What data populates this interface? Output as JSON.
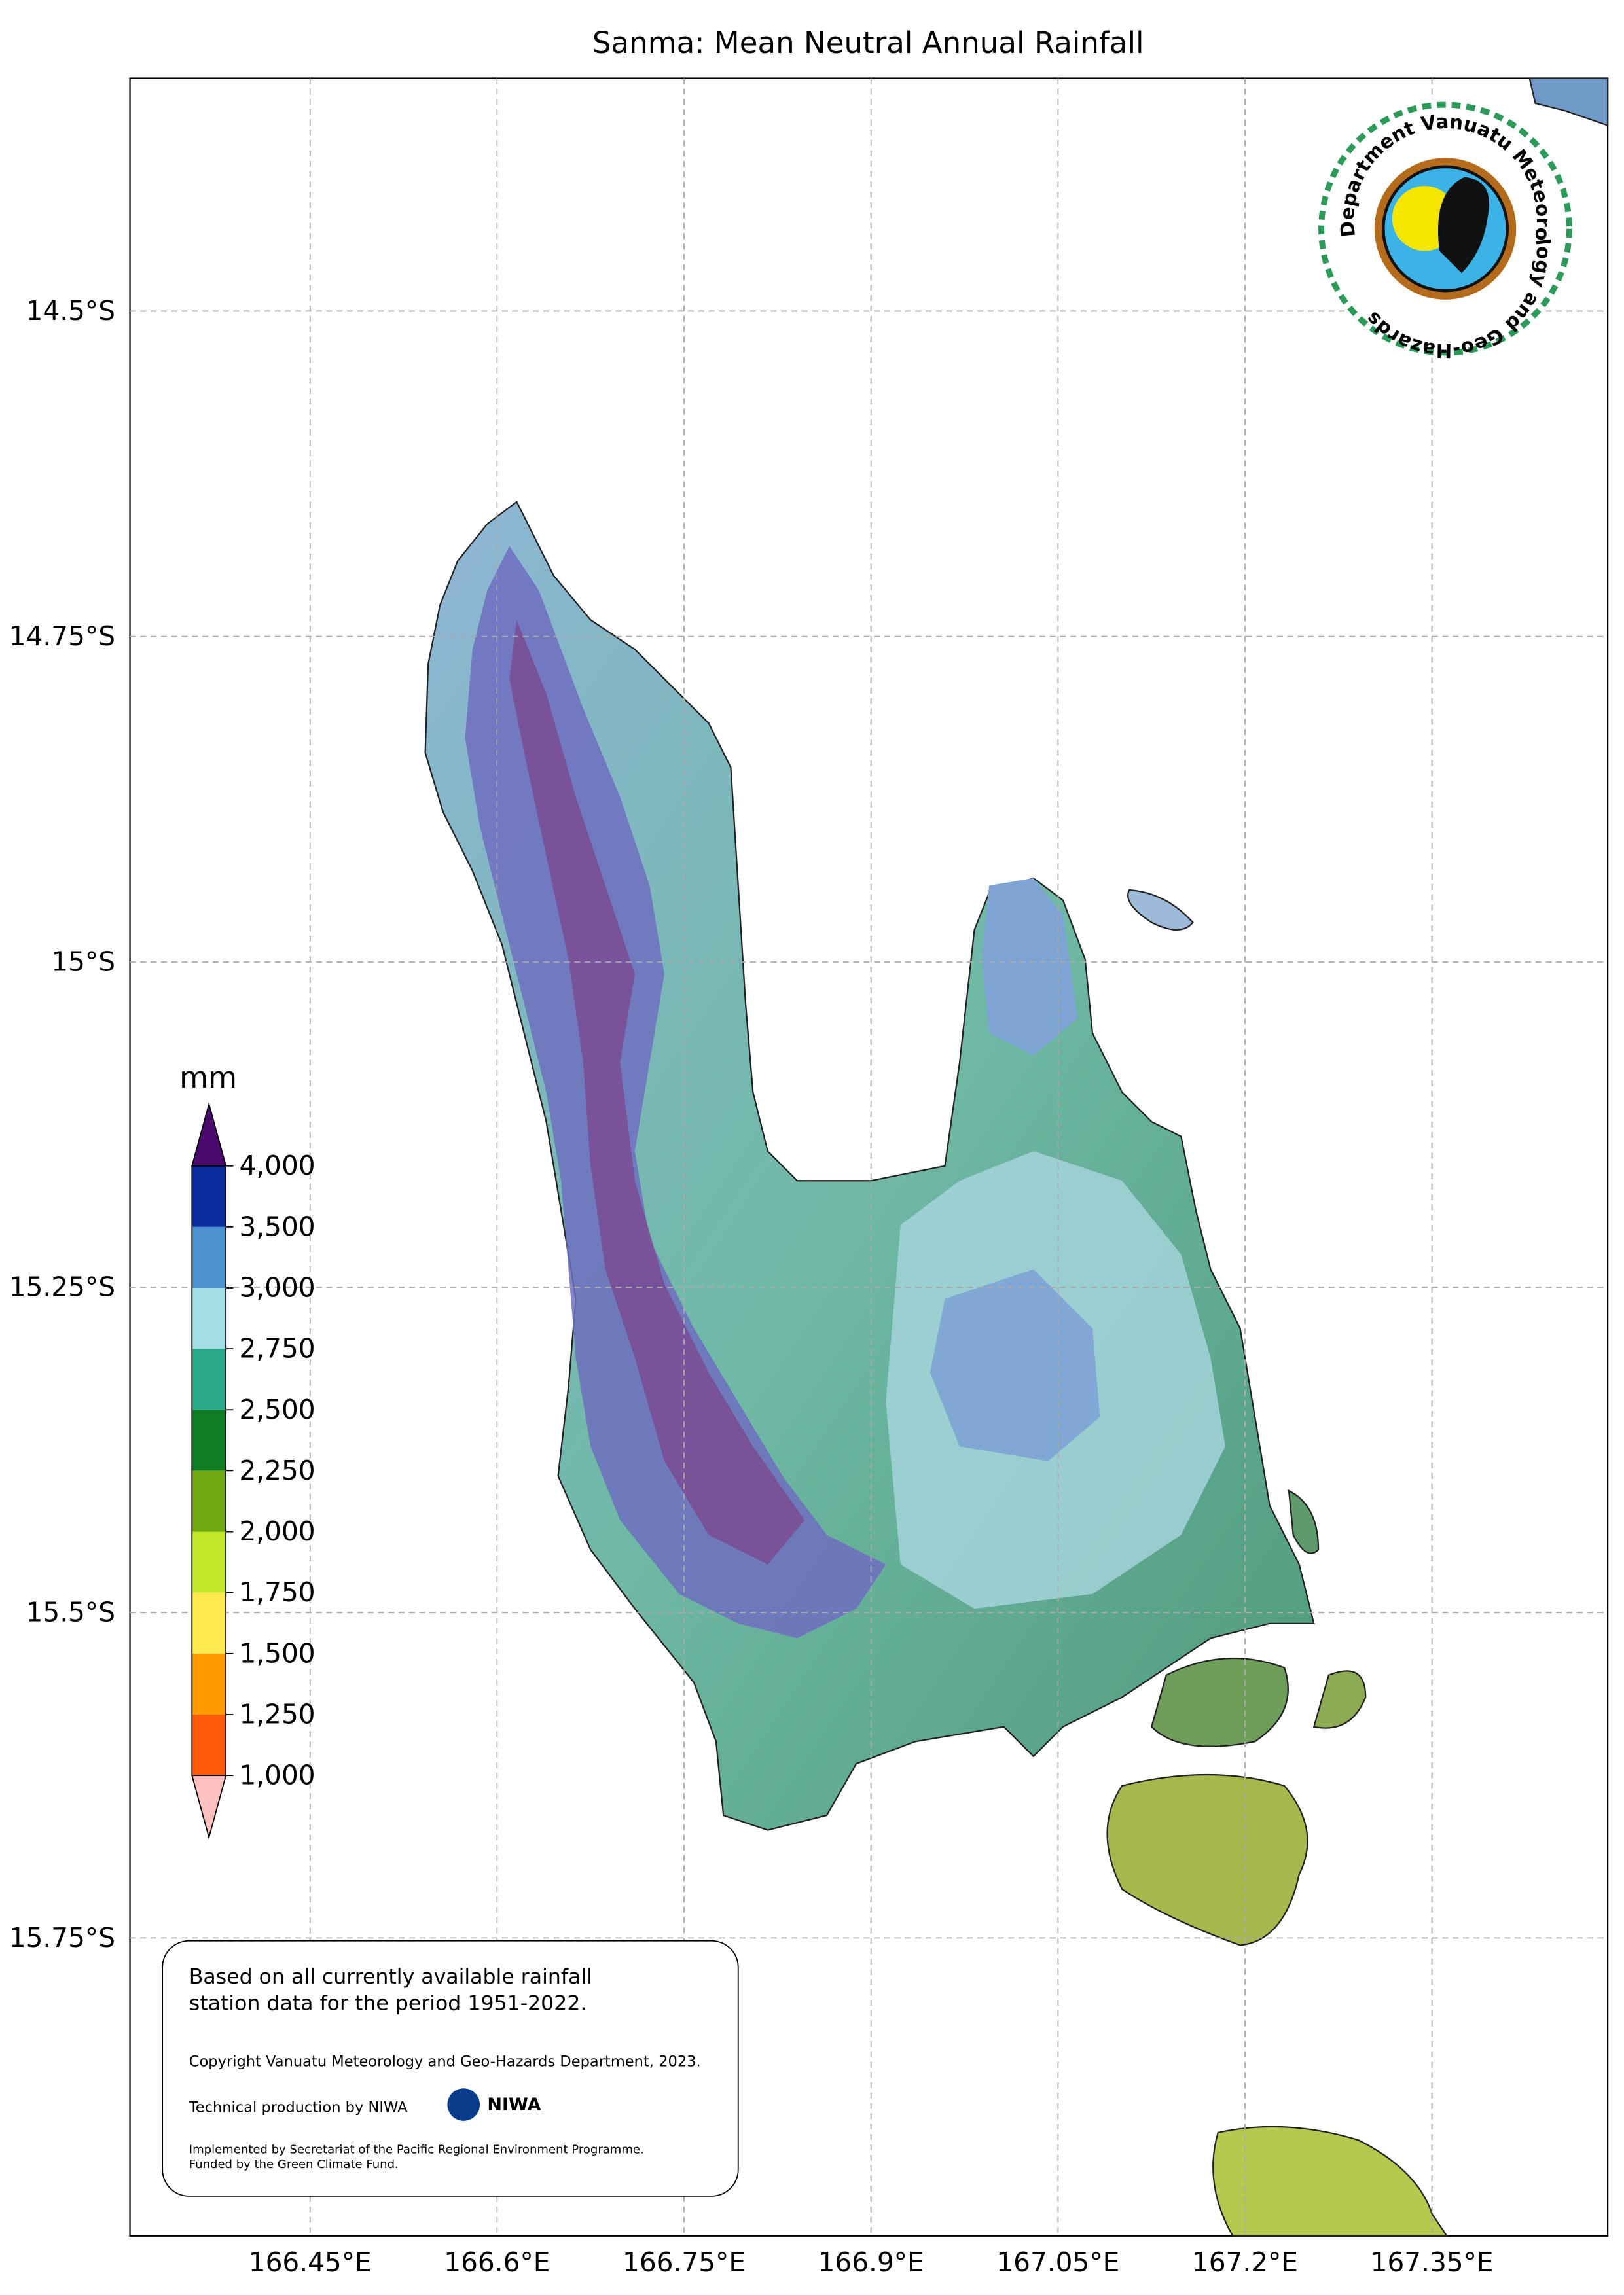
{
  "chart_data": {
    "type": "map",
    "title": "Sanma: Mean Neutral Annual Rainfall",
    "xlim": [
      166.3055,
      167.491
    ],
    "ylim": [
      -15.979,
      -14.321
    ],
    "xticks": [
      {
        "value": 166.45,
        "label": "166.45°E"
      },
      {
        "value": 166.6,
        "label": "166.6°E"
      },
      {
        "value": 166.75,
        "label": "166.75°E"
      },
      {
        "value": 166.9,
        "label": "166.9°E"
      },
      {
        "value": 167.05,
        "label": "167.05°E"
      },
      {
        "value": 167.2,
        "label": "167.2°E"
      },
      {
        "value": 167.35,
        "label": "167.35°E"
      }
    ],
    "yticks": [
      {
        "value": -14.5,
        "label": "14.5°S"
      },
      {
        "value": -14.75,
        "label": "14.75°S"
      },
      {
        "value": -15,
        "label": "15°S"
      },
      {
        "value": -15.25,
        "label": "15.25°S"
      },
      {
        "value": -15.5,
        "label": "15.5°S"
      },
      {
        "value": -15.75,
        "label": "15.75°S"
      }
    ],
    "grid": true,
    "colorbar": {
      "label": "mm",
      "ticks": [
        {
          "value": 1000,
          "label": "1,000"
        },
        {
          "value": 1250,
          "label": "1,250"
        },
        {
          "value": 1500,
          "label": "1,500"
        },
        {
          "value": 1750,
          "label": "1,750"
        },
        {
          "value": 2000,
          "label": "2,000"
        },
        {
          "value": 2250,
          "label": "2,250"
        },
        {
          "value": 2500,
          "label": "2,500"
        },
        {
          "value": 2750,
          "label": "2,750"
        },
        {
          "value": 3000,
          "label": "3,000"
        },
        {
          "value": 3500,
          "label": "3,500"
        },
        {
          "value": 4000,
          "label": "4,000"
        }
      ],
      "colors": [
        "#ff5a0a",
        "#ff9b00",
        "#ffe94d",
        "#c3e82a",
        "#6fa812",
        "#0e7d24",
        "#2aaa88",
        "#a4dfe8",
        "#4b93d0",
        "#0a2c9c"
      ],
      "under_color": "#ffc0c0",
      "over_color": "#4b0a6e"
    }
  },
  "logo": {
    "text": "Department Vanuatu Meteorology and Geo-Hazards"
  },
  "info_box": {
    "lines": [
      "Based on all currently available rainfall",
      "station data for the period 1951-2022."
    ],
    "copyright": "Copyright Vanuatu Meteorology and Geo-Hazards Department, 2023.",
    "production": "Technical production by NIWA",
    "niwa": "NIWA",
    "funding": [
      "Implemented by Secretariat of the Pacific Regional Environment Programme.",
      "Funded by the Green Climate Fund."
    ]
  }
}
